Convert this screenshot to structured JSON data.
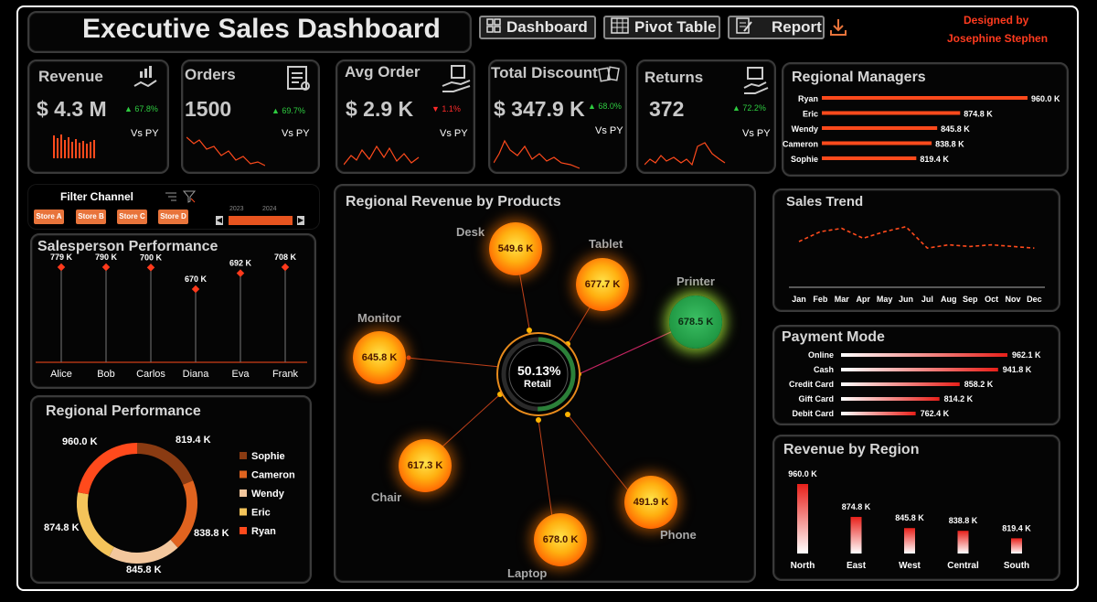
{
  "header": {
    "title": "Executive Sales Dashboard",
    "nav": [
      "Dashboard",
      "Pivot Table",
      "Report"
    ],
    "designed_by_line1": "Designed by",
    "designed_by_line2": "Josephine Stephen"
  },
  "kpis": {
    "revenue": {
      "title": "Revenue",
      "value": "$ 4.3 M",
      "change": "▲ 67.8%",
      "vs": "Vs PY"
    },
    "orders": {
      "title": "Orders",
      "value": "1500",
      "change": "▲ 69.7%",
      "vs": "Vs PY"
    },
    "avg_order": {
      "title": "Avg Order",
      "value": "$ 2.9 K",
      "change": "▼ 1.1%",
      "vs": "Vs PY"
    },
    "total_discount": {
      "title": "Total Discount",
      "value": "$ 347.9 K",
      "change": "▲ 68.0%",
      "vs": "Vs PY"
    },
    "returns": {
      "title": "Returns",
      "value": "372",
      "change": "▲ 72.2%",
      "vs": "Vs PY"
    }
  },
  "colors": {
    "accent": "#ff4a1c",
    "up": "#2ecc40",
    "down": "#ff2a2a",
    "designer": "#ff3b1f"
  },
  "regional_managers": {
    "title": "Regional Managers",
    "names": [
      "Ryan",
      "Eric",
      "Wendy",
      "Cameron",
      "Sophie"
    ],
    "labels": [
      "960.0 K",
      "874.8 K",
      "845.8 K",
      "838.8 K",
      "819.4 K"
    ],
    "values": [
      960.0,
      874.8,
      845.8,
      838.8,
      819.4
    ]
  },
  "filter": {
    "title": "Filter Channel",
    "stores": [
      "Store A",
      "Store B",
      "Store C",
      "Store D"
    ],
    "years": [
      "2023",
      "2024"
    ]
  },
  "salesperson": {
    "title": "Salesperson Performance",
    "names": [
      "Alice",
      "Bob",
      "Carlos",
      "Diana",
      "Eva",
      "Frank"
    ],
    "labels": [
      "779 K",
      "790 K",
      "700 K",
      "670 K",
      "692 K",
      "708 K"
    ]
  },
  "regional_performance": {
    "title": "Regional Performance",
    "legend": [
      "Sophie",
      "Cameron",
      "Wendy",
      "Eric",
      "Ryan"
    ],
    "labels": [
      "960.0 K",
      "819.4 K",
      "838.8 K",
      "845.8 K",
      "874.8 K"
    ]
  },
  "products": {
    "title": "Regional Revenue by Products",
    "center_value": "50.13%",
    "center_label": "Retail",
    "desk": {
      "name": "Desk",
      "value": "549.6 K"
    },
    "tablet": {
      "name": "Tablet",
      "value": "677.7 K"
    },
    "printer": {
      "name": "Printer",
      "value": "678.5 K"
    },
    "monitor": {
      "name": "Monitor",
      "value": "645.8 K"
    },
    "chair": {
      "name": "Chair",
      "value": "617.3 K"
    },
    "phone": {
      "name": "Phone",
      "value": "491.9 K"
    },
    "laptop": {
      "name": "Laptop",
      "value": "678.0 K"
    }
  },
  "sales_trend": {
    "title": "Sales Trend",
    "months": [
      "Jan",
      "Feb",
      "Mar",
      "Apr",
      "May",
      "Jun",
      "Jul",
      "Aug",
      "Sep",
      "Oct",
      "Nov",
      "Dec"
    ]
  },
  "payment_mode": {
    "title": "Payment Mode",
    "names": [
      "Online",
      "Cash",
      "Credit Card",
      "Gift Card",
      "Debit Card"
    ],
    "labels": [
      "962.1 K",
      "941.8 K",
      "858.2 K",
      "814.2 K",
      "762.4 K"
    ]
  },
  "revenue_region": {
    "title": "Revenue by Region",
    "regions": [
      "North",
      "East",
      "West",
      "Central",
      "South"
    ],
    "labels": [
      "960.0 K",
      "874.8 K",
      "845.8 K",
      "838.8 K",
      "819.4 K"
    ]
  },
  "chart_data": [
    {
      "type": "bar",
      "categories": [
        "Ryan",
        "Eric",
        "Wendy",
        "Cameron",
        "Sophie"
      ],
      "values": [
        960.0,
        874.8,
        845.8,
        838.8,
        819.4
      ]
    },
    {
      "type": "scatter",
      "categories": [
        "Alice",
        "Bob",
        "Carlos",
        "Diana",
        "Eva",
        "Frank"
      ],
      "values": [
        779,
        790,
        700,
        670,
        692,
        708
      ]
    },
    {
      "type": "pie",
      "categories": [
        "Sophie",
        "Cameron",
        "Wendy",
        "Eric",
        "Ryan"
      ],
      "values": [
        819.4,
        838.8,
        845.8,
        874.8,
        960.0
      ]
    },
    {
      "type": "line",
      "categories": [
        "Jan",
        "Feb",
        "Mar",
        "Apr",
        "May",
        "Jun",
        "Jul",
        "Aug",
        "Sep",
        "Oct",
        "Nov",
        "Dec"
      ],
      "values": [
        0.5,
        0.8,
        0.9,
        0.6,
        0.8,
        0.95,
        0.3,
        0.4,
        0.35,
        0.4,
        0.35,
        0.3
      ]
    },
    {
      "type": "bar",
      "categories": [
        "Online",
        "Cash",
        "Credit Card",
        "Gift Card",
        "Debit Card"
      ],
      "values": [
        962.1,
        941.8,
        858.2,
        814.2,
        762.4
      ]
    },
    {
      "type": "bar",
      "categories": [
        "North",
        "East",
        "West",
        "Central",
        "South"
      ],
      "values": [
        960.0,
        874.8,
        845.8,
        838.8,
        819.4
      ]
    }
  ]
}
